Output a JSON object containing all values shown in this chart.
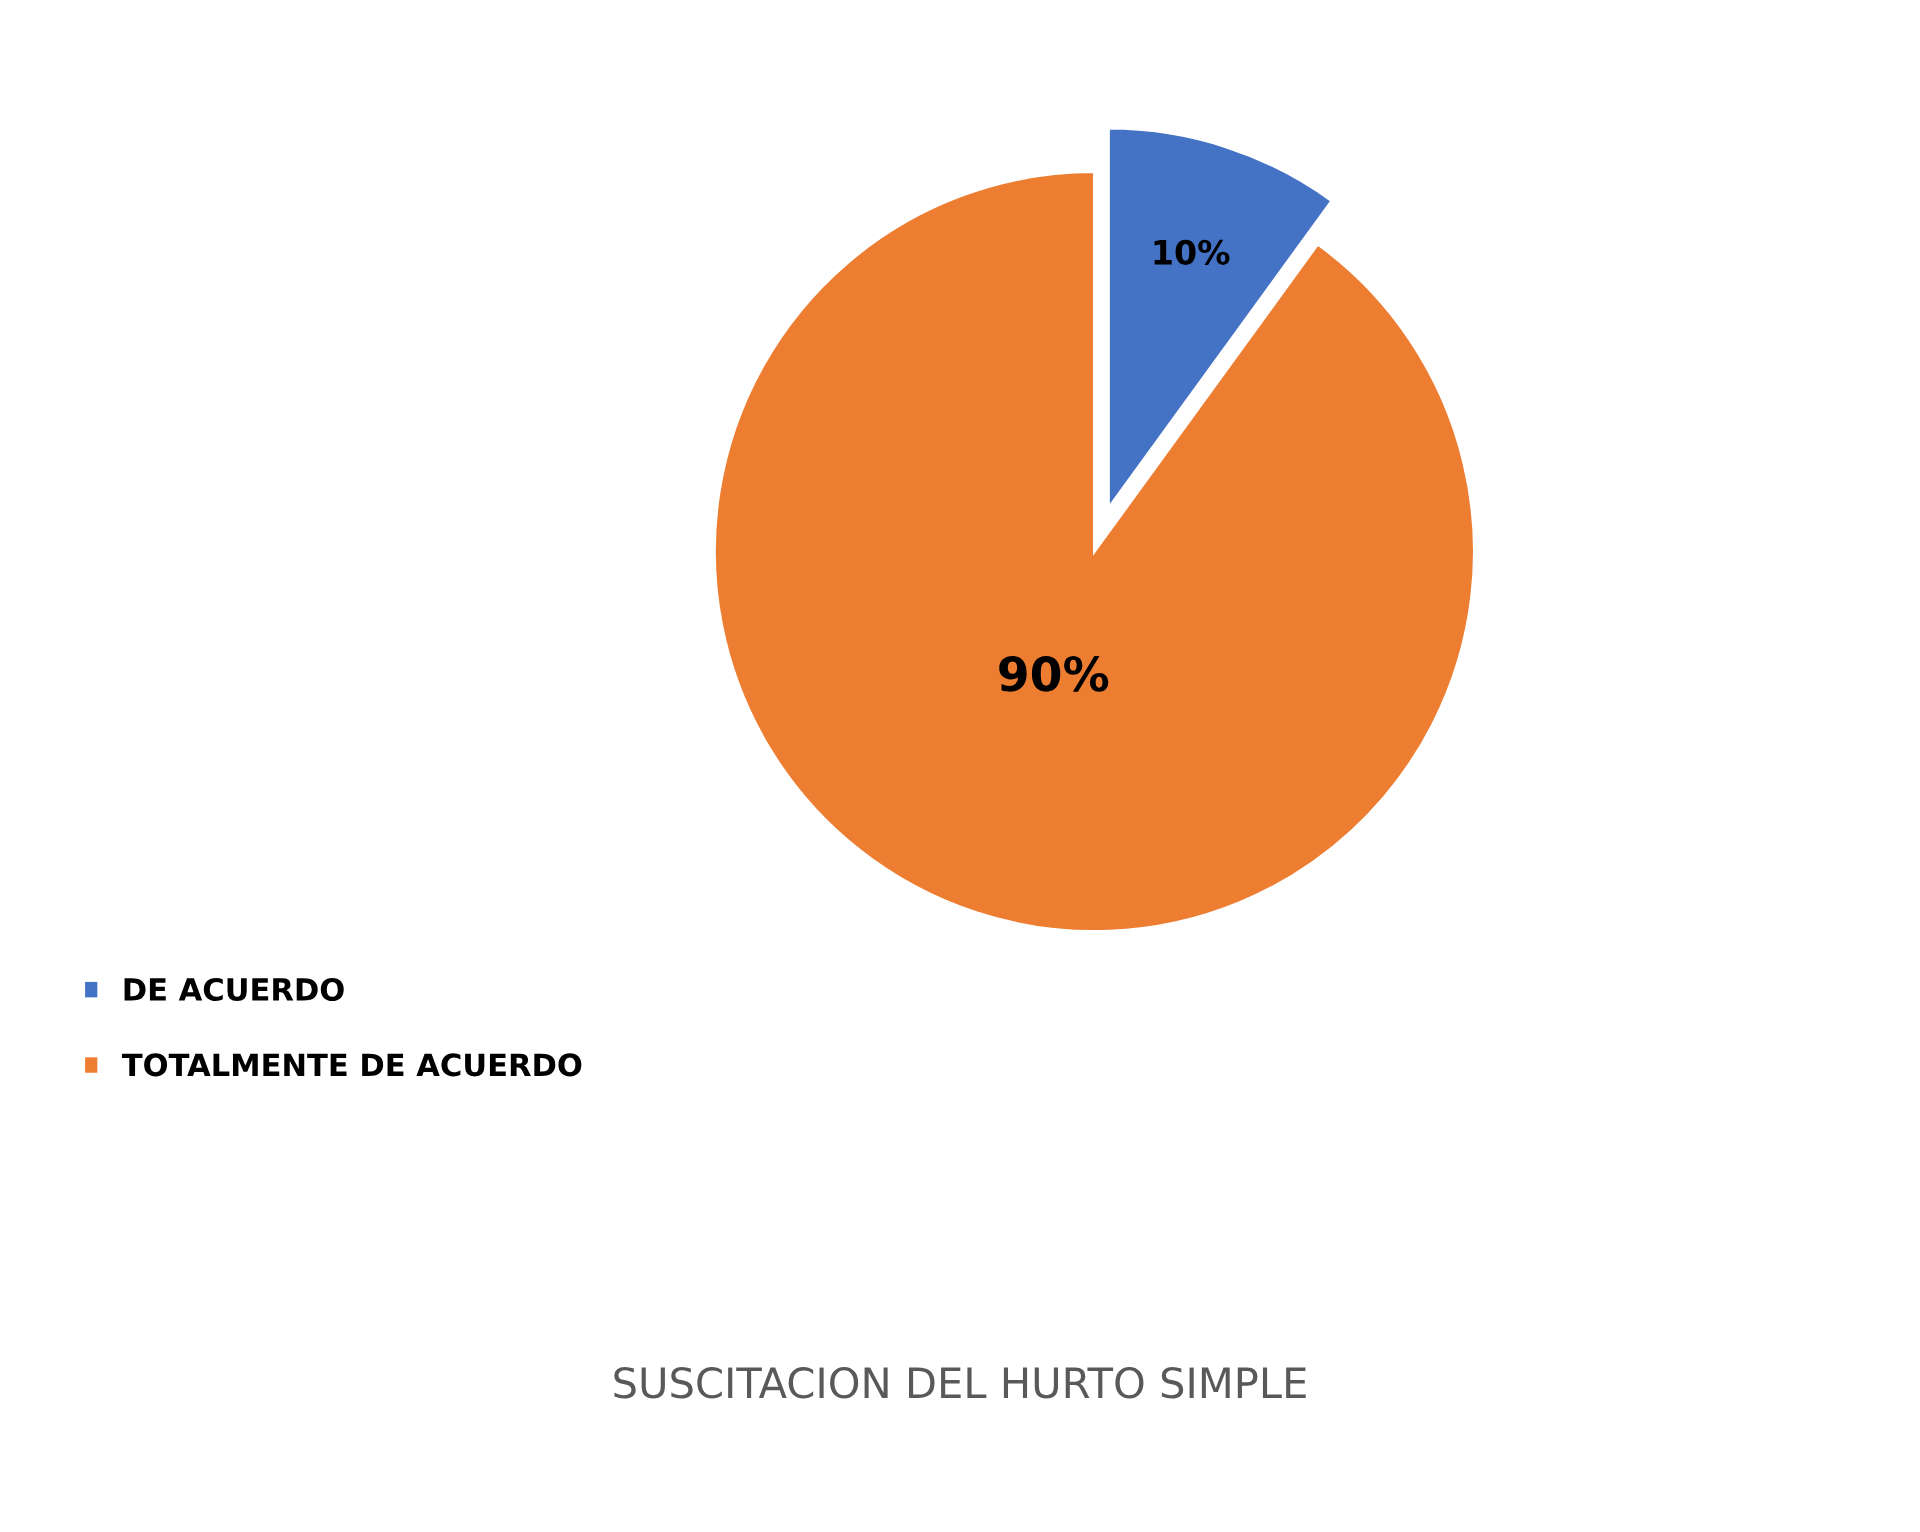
{
  "chart_data": {
    "type": "pie",
    "title": "SUSCITACION DEL HURTO SIMPLE",
    "categories": [
      "DE ACUERDO",
      "TOTALMENTE DE ACUERDO"
    ],
    "values": [
      10,
      90
    ],
    "colors": [
      "#4472c4",
      "#ed7d31"
    ],
    "value_labels": [
      "10%",
      "90%"
    ],
    "legend": "left"
  }
}
